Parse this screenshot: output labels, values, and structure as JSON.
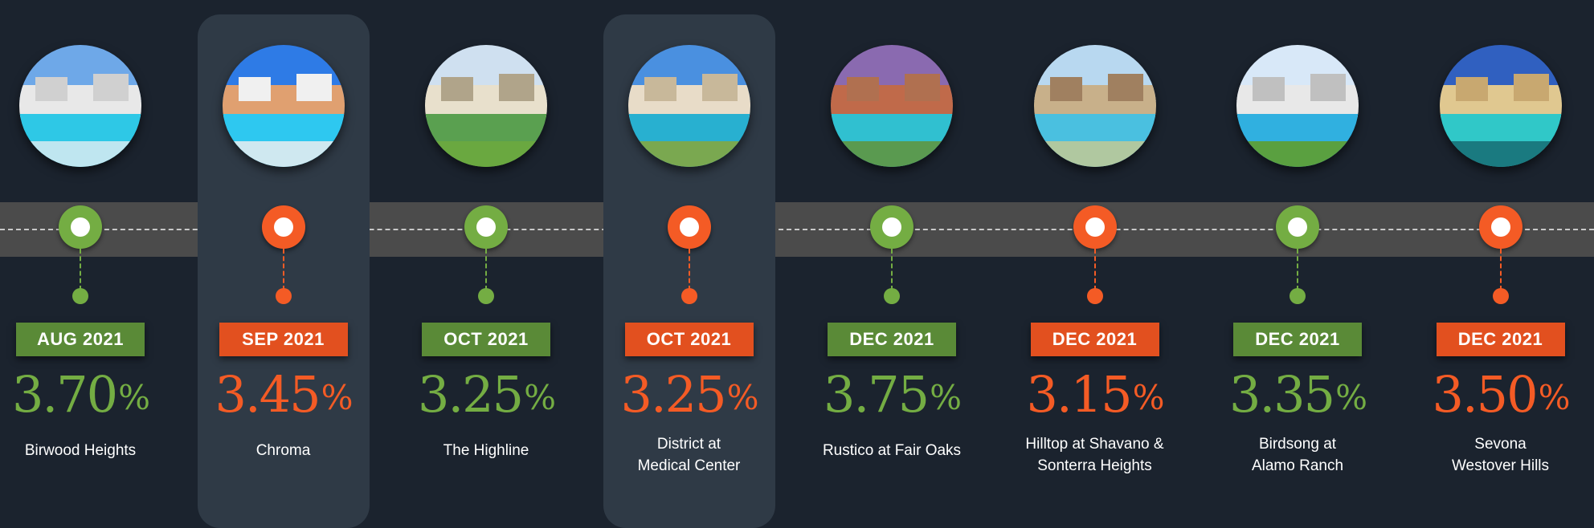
{
  "timeline": {
    "items": [
      {
        "date": "AUG 2021",
        "rate": "3.70",
        "pct": "%",
        "name_line1": "Birwood Heights",
        "name_line2": "",
        "tone": "green",
        "highlighted": false,
        "photo_icon": "pool-photo-icon"
      },
      {
        "date": "SEP 2021",
        "rate": "3.45",
        "pct": "%",
        "name_line1": "Chroma",
        "name_line2": "",
        "tone": "orange",
        "highlighted": true,
        "photo_icon": "pool-photo-icon"
      },
      {
        "date": "OCT 2021",
        "rate": "3.25",
        "pct": "%",
        "name_line1": "The Highline",
        "name_line2": "",
        "tone": "green",
        "highlighted": false,
        "photo_icon": "building-photo-icon"
      },
      {
        "date": "OCT 2021",
        "rate": "3.25",
        "pct": "%",
        "name_line1": "District at",
        "name_line2": "Medical Center",
        "tone": "orange",
        "highlighted": true,
        "photo_icon": "building-photo-icon"
      },
      {
        "date": "DEC 2021",
        "rate": "3.75",
        "pct": "%",
        "name_line1": "Rustico at Fair Oaks",
        "name_line2": "",
        "tone": "green",
        "highlighted": false,
        "photo_icon": "pool-photo-icon"
      },
      {
        "date": "DEC 2021",
        "rate": "3.15",
        "pct": "%",
        "name_line1": "Hilltop at Shavano &",
        "name_line2": "Sonterra Heights",
        "tone": "orange",
        "highlighted": false,
        "photo_icon": "pool-photo-icon"
      },
      {
        "date": "DEC 2021",
        "rate": "3.35",
        "pct": "%",
        "name_line1": "Birdsong at",
        "name_line2": "Alamo Ranch",
        "tone": "green",
        "highlighted": false,
        "photo_icon": "pool-photo-icon"
      },
      {
        "date": "DEC 2021",
        "rate": "3.50",
        "pct": "%",
        "name_line1": "Sevona",
        "name_line2": "Westover Hills",
        "tone": "orange",
        "highlighted": false,
        "photo_icon": "pool-photo-icon"
      }
    ]
  },
  "colors": {
    "background": "#1b232e",
    "highlight_panel": "#2f3a46",
    "timeline_band": "#4b4b4b",
    "green": "#74ad43",
    "green_label": "#5a8a37",
    "orange": "#f45b25",
    "orange_label": "#e2501f"
  }
}
